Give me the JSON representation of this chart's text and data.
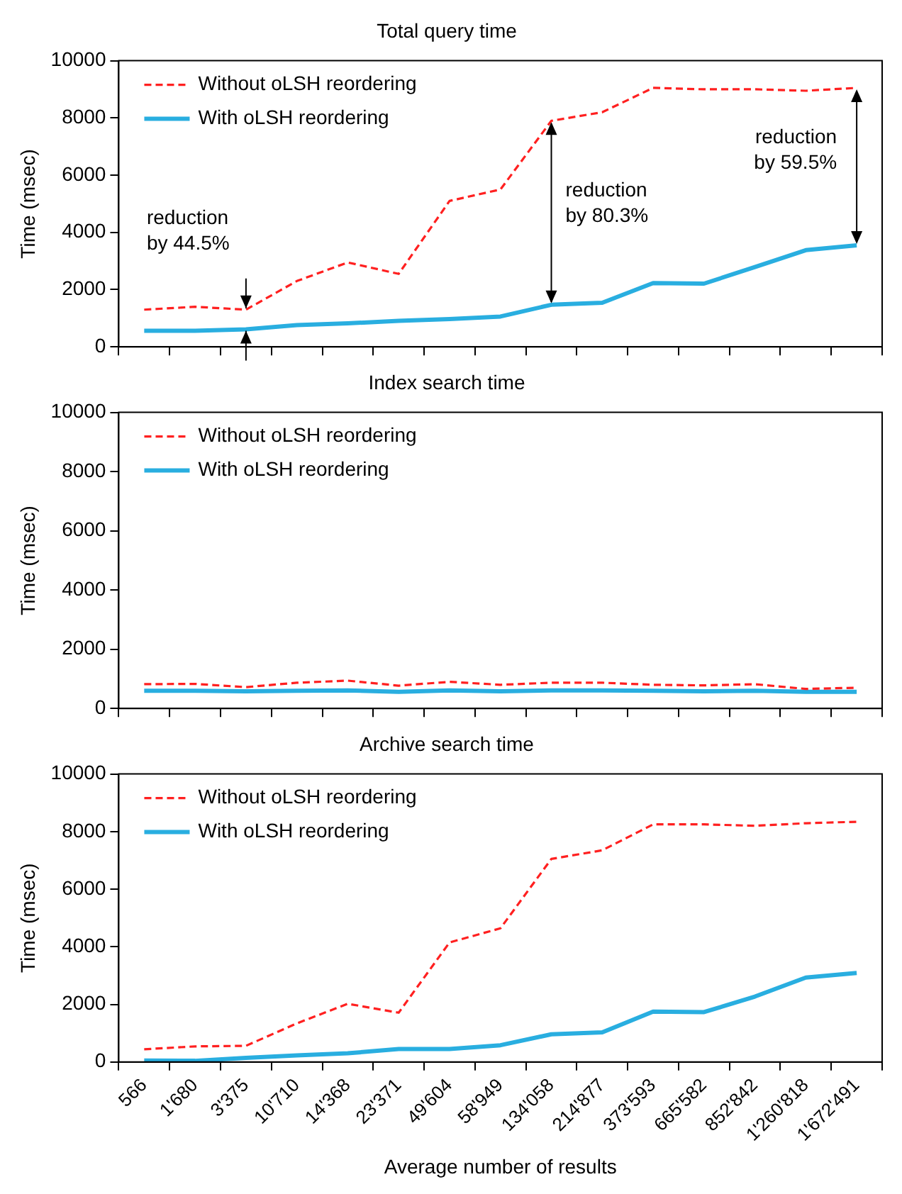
{
  "chart_data": [
    {
      "type": "line",
      "title": "Total query time",
      "ylabel": "Time (msec)",
      "categories": [
        "566",
        "1'680",
        "3'375",
        "10'710",
        "14'368",
        "23'371",
        "49'604",
        "58'949",
        "134'058",
        "214'877",
        "373'593",
        "665'582",
        "852'842",
        "1'260'818",
        "1'672'491"
      ],
      "series": [
        {
          "name": "Without oLSH reordering",
          "color": "#ff2020",
          "line_style": "dashed",
          "values": [
            1300,
            1400,
            1300,
            2300,
            2950,
            2550,
            5100,
            5500,
            7900,
            8200,
            9050,
            9000,
            9000,
            8950,
            9050
          ]
        },
        {
          "name": "With oLSH reordering",
          "color": "#29aee0",
          "line_style": "solid",
          "values": [
            560,
            560,
            610,
            760,
            820,
            910,
            970,
            1060,
            1470,
            1540,
            2230,
            2210,
            2790,
            3380,
            3550
          ]
        }
      ],
      "ylim": [
        0,
        10000
      ],
      "yticks": [
        0,
        2000,
        4000,
        6000,
        8000,
        10000
      ],
      "grid": false,
      "legend": "top left",
      "marker": "none",
      "tick_labels": "y",
      "annotations": [
        {
          "text": "reduction by 44.5%",
          "x": "3'375",
          "y": 1300
        },
        {
          "text": "reduction by 80.3%",
          "x": "134'058",
          "y": 7900
        },
        {
          "text": "reduction by 59.5%",
          "x": "1'672'491",
          "y": 9050
        }
      ]
    },
    {
      "type": "line",
      "title": "Index search time",
      "ylabel": "Time (msec)",
      "categories": [
        "566",
        "1'680",
        "3'375",
        "10'710",
        "14'368",
        "23'371",
        "49'604",
        "58'949",
        "134'058",
        "214'877",
        "373'593",
        "665'582",
        "852'842",
        "1'260'818",
        "1'672'491"
      ],
      "series": [
        {
          "name": "Without oLSH reordering",
          "color": "#ff2020",
          "line_style": "dashed",
          "values": [
            820,
            830,
            720,
            870,
            940,
            770,
            900,
            800,
            870,
            870,
            800,
            780,
            820,
            660,
            700
          ]
        },
        {
          "name": "With oLSH reordering",
          "color": "#29aee0",
          "line_style": "solid",
          "values": [
            600,
            600,
            580,
            600,
            610,
            560,
            610,
            580,
            610,
            610,
            600,
            580,
            600,
            560,
            560
          ]
        }
      ],
      "ylim": [
        0,
        10000
      ],
      "yticks": [
        0,
        2000,
        4000,
        6000,
        8000,
        10000
      ],
      "grid": false,
      "legend": "top left",
      "marker": "none",
      "tick_labels": "y"
    },
    {
      "type": "line",
      "title": "Archive search time",
      "ylabel": "Time (msec)",
      "xlabel": "Average number of results",
      "categories": [
        "566",
        "1'680",
        "3'375",
        "10'710",
        "14'368",
        "23'371",
        "49'604",
        "58'949",
        "134'058",
        "214'877",
        "373'593",
        "665'582",
        "852'842",
        "1'260'818",
        "1'672'491"
      ],
      "series": [
        {
          "name": "Without oLSH reordering",
          "color": "#ff2020",
          "line_style": "dashed",
          "values": [
            440,
            540,
            560,
            1340,
            2020,
            1710,
            4150,
            4640,
            7050,
            7350,
            8250,
            8250,
            8200,
            8290,
            8340
          ]
        },
        {
          "name": "With oLSH reordering",
          "color": "#29aee0",
          "line_style": "solid",
          "values": [
            50,
            40,
            140,
            230,
            300,
            450,
            450,
            580,
            960,
            1030,
            1750,
            1730,
            2270,
            2930,
            3090
          ]
        }
      ],
      "ylim": [
        0,
        10000
      ],
      "yticks": [
        0,
        2000,
        4000,
        6000,
        8000,
        10000
      ],
      "grid": false,
      "legend": "top left",
      "marker": "none"
    }
  ]
}
